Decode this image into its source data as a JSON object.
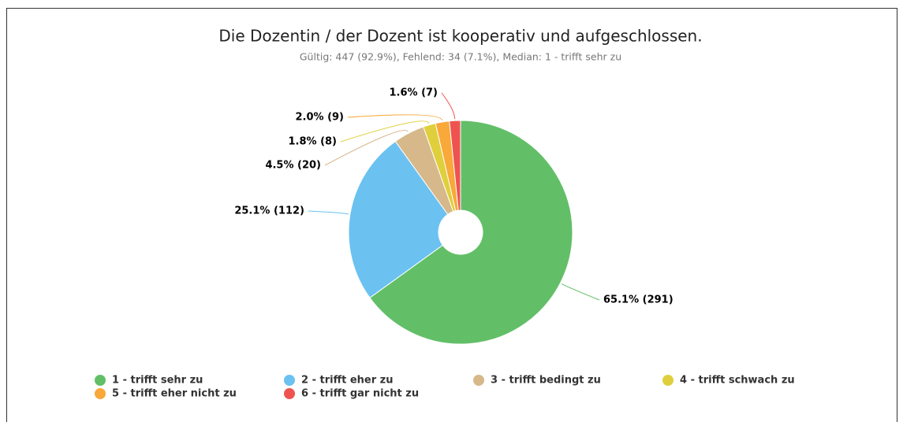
{
  "chart_data": {
    "type": "pie",
    "title": "Die Dozentin / der Dozent ist kooperativ und aufgeschlossen.",
    "subtitle": "Gültig: 447 (92.9%), Fehlend: 34 (7.1%), Median: 1 - trifft sehr zu",
    "categories": [
      "1 - trifft sehr zu",
      "2 - trifft eher zu",
      "3 - trifft bedingt zu",
      "4 - trifft schwach zu",
      "5 - trifft eher nicht zu",
      "6 - trifft gar nicht zu"
    ],
    "values": [
      65.1,
      25.1,
      4.5,
      1.8,
      2.0,
      1.6
    ],
    "value_labels": [
      "65.1% (291)",
      "25.1% (112)",
      "4.5% (20)",
      "1.8% (8)",
      "2.0% (9)",
      "1.6% (7)"
    ],
    "colors": [
      "#62bf67",
      "#6bc1f0",
      "#d6b88a",
      "#e0cf3c",
      "#f9a83a",
      "#ef5350"
    ],
    "legend": "bottom"
  }
}
